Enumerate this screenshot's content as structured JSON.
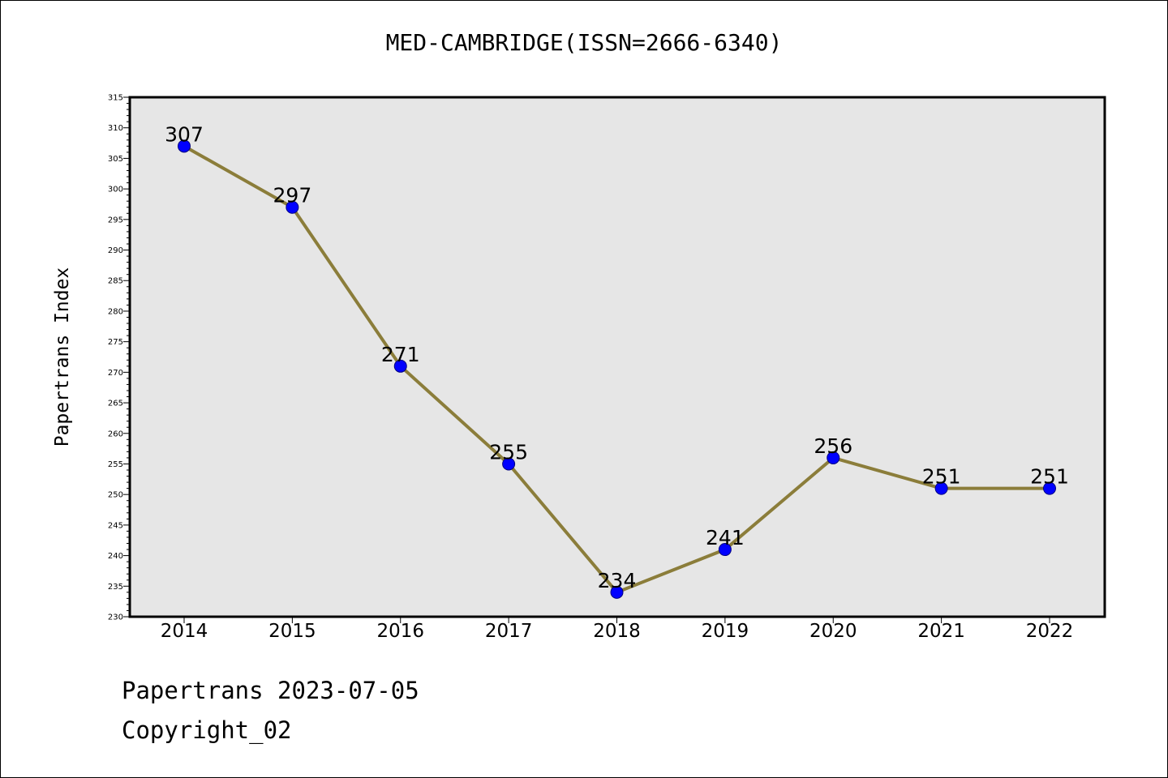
{
  "chart_data": {
    "type": "line",
    "title": "MED-CAMBRIDGE(ISSN=2666-6340)",
    "xlabel": "",
    "ylabel": "Papertrans Index",
    "categories": [
      "2014",
      "2015",
      "2016",
      "2017",
      "2018",
      "2019",
      "2020",
      "2021",
      "2022"
    ],
    "series": [
      {
        "values": [
          307,
          297,
          271,
          255,
          234,
          241,
          256,
          251,
          251
        ],
        "data_labels": [
          "307",
          "297",
          "271",
          "255",
          "234",
          "241",
          "256",
          "251",
          "251"
        ]
      }
    ],
    "ylim": [
      230,
      315
    ],
    "yticks": [
      "230",
      "235",
      "240",
      "245",
      "250",
      "255",
      "260",
      "265",
      "270",
      "275",
      "280",
      "285",
      "290",
      "295",
      "300",
      "305",
      "310",
      "315"
    ],
    "grid": false,
    "legend": "none",
    "colors": {
      "line": "#8b7d3a",
      "marker": "#0000ff",
      "plot_background": "#e6e6e6"
    }
  },
  "footer": {
    "date_line": "Papertrans 2023-07-05",
    "copyright": "Copyright_02"
  }
}
